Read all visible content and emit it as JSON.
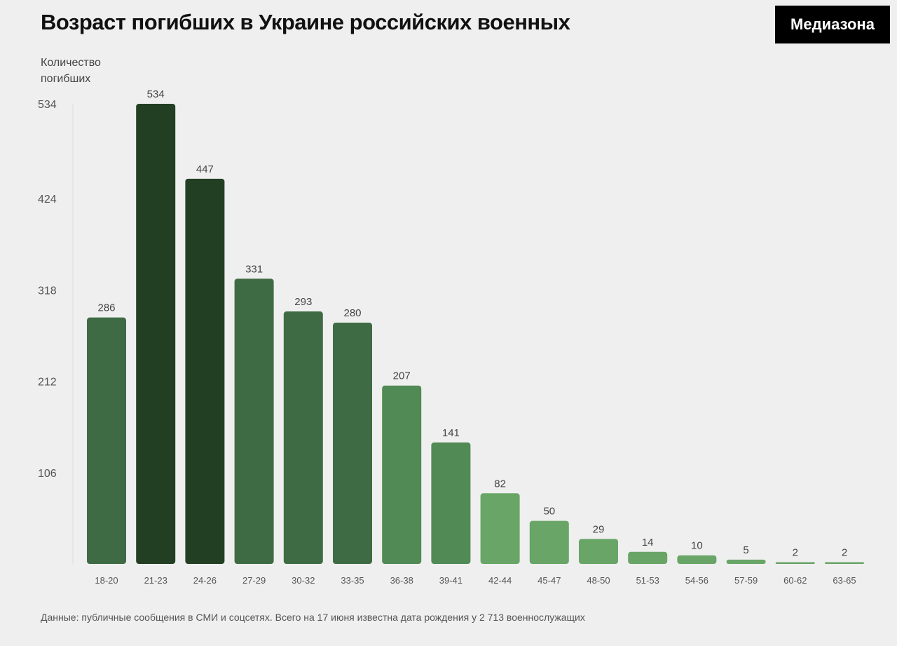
{
  "title": "Возраст погибших в Украине российских военных",
  "brand": "Медиазона",
  "source_note": "Данные: публичные сообщения в СМИ и соцсетях. Всего на 17 июня известна дата рождения у 2 713 военнослужащих",
  "chart_data": {
    "type": "bar",
    "title": "Возраст погибших в Украине российских военных",
    "ylabel_lines": [
      "Количество",
      "погибших"
    ],
    "xlabel": "",
    "categories": [
      "18-20",
      "21-23",
      "24-26",
      "27-29",
      "30-32",
      "33-35",
      "36-38",
      "39-41",
      "42-44",
      "45-47",
      "48-50",
      "51-53",
      "54-56",
      "57-59",
      "60-62",
      "63-65"
    ],
    "values": [
      286,
      534,
      447,
      331,
      293,
      280,
      207,
      141,
      82,
      50,
      29,
      14,
      10,
      5,
      2,
      2
    ],
    "yticks": [
      106,
      212,
      318,
      424,
      534
    ],
    "ylim": [
      0,
      534
    ],
    "grid": false,
    "colors": {
      "darkest": "#233f23",
      "dark": "#3f6b44",
      "medium": "#518a54",
      "light": "#68a566",
      "tick_text": "#555555",
      "label_text": "#444444"
    }
  }
}
